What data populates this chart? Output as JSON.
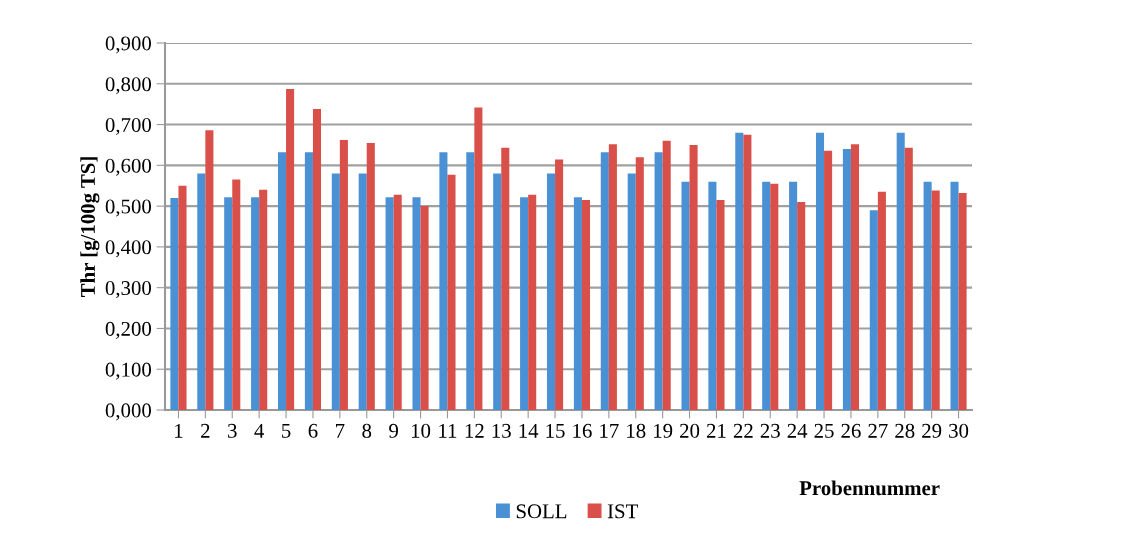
{
  "chart_data": {
    "type": "bar",
    "ylabel": "Thr [g/100g TS]",
    "xlabel": "Probennummer",
    "categories": [
      "1",
      "2",
      "3",
      "4",
      "5",
      "6",
      "7",
      "8",
      "9",
      "10",
      "11",
      "12",
      "13",
      "14",
      "15",
      "16",
      "17",
      "18",
      "19",
      "20",
      "21",
      "22",
      "23",
      "24",
      "25",
      "26",
      "27",
      "28",
      "29",
      "30"
    ],
    "series": [
      {
        "name": "SOLL",
        "color": "#4a90d4",
        "values": [
          0.52,
          0.58,
          0.522,
          0.522,
          0.632,
          0.632,
          0.58,
          0.58,
          0.522,
          0.522,
          0.632,
          0.632,
          0.58,
          0.522,
          0.58,
          0.522,
          0.632,
          0.58,
          0.632,
          0.56,
          0.56,
          0.68,
          0.56,
          0.56,
          0.68,
          0.64,
          0.49,
          0.68,
          0.56,
          0.56
        ]
      },
      {
        "name": "IST",
        "color": "#d9504a",
        "values": [
          0.55,
          0.686,
          0.565,
          0.54,
          0.787,
          0.738,
          0.662,
          0.655,
          0.528,
          0.5,
          0.577,
          0.742,
          0.643,
          0.528,
          0.614,
          0.515,
          0.652,
          0.62,
          0.66,
          0.65,
          0.515,
          0.675,
          0.555,
          0.51,
          0.636,
          0.652,
          0.535,
          0.643,
          0.538,
          0.532
        ]
      }
    ],
    "ylim": [
      0,
      0.9
    ],
    "yticks": [
      {
        "value": 0,
        "label": "0,000"
      },
      {
        "value": 0.1,
        "label": "0,100"
      },
      {
        "value": 0.2,
        "label": "0,200"
      },
      {
        "value": 0.3,
        "label": "0,300"
      },
      {
        "value": 0.4,
        "label": "0,400"
      },
      {
        "value": 0.5,
        "label": "0,500"
      },
      {
        "value": 0.6,
        "label": "0,600"
      },
      {
        "value": 0.7,
        "label": "0,700"
      },
      {
        "value": 0.8,
        "label": "0,800"
      },
      {
        "value": 0.9,
        "label": "0,900"
      }
    ],
    "grid": "y",
    "legend": "bottom"
  }
}
